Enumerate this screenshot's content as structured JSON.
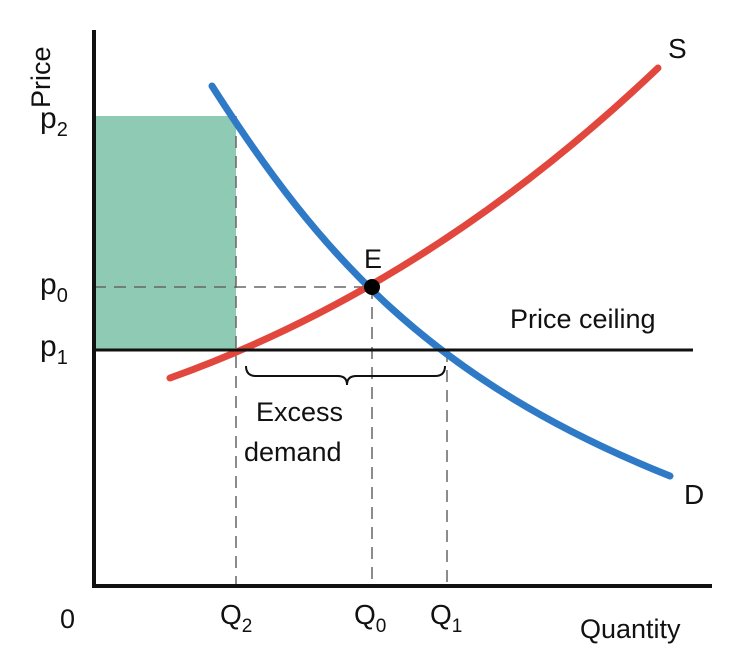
{
  "diagram": {
    "axes": {
      "y_label": "Price",
      "x_label": "Quantity",
      "origin_label": "0"
    },
    "price_labels": {
      "p2": {
        "base": "p",
        "sub": "2"
      },
      "p0": {
        "base": "p",
        "sub": "0"
      },
      "p1": {
        "base": "p",
        "sub": "1"
      }
    },
    "quantity_labels": {
      "q2": {
        "base": "Q",
        "sub": "2"
      },
      "q0": {
        "base": "Q",
        "sub": "0"
      },
      "q1": {
        "base": "Q",
        "sub": "1"
      }
    },
    "curves": {
      "supply": {
        "label": "S",
        "color": "#e2473d"
      },
      "demand": {
        "label": "D",
        "color": "#2f7ac6"
      }
    },
    "price_ceiling_label": "Price ceiling",
    "equilibrium_label": "E",
    "excess_demand": {
      "line1": "Excess",
      "line2": "demand"
    },
    "shaded_area_color": "#8ecab4"
  }
}
